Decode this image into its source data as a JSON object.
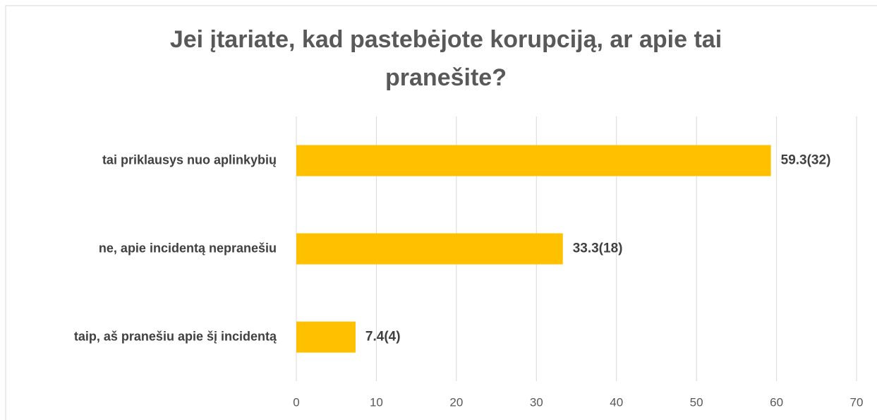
{
  "chart_data": {
    "type": "bar",
    "orientation": "horizontal",
    "title": [
      "Jei įtariate, kad pastebėjote korupciją, ar apie tai",
      "pranešite?"
    ],
    "categories": [
      "tai priklausys nuo aplinkybių ",
      "ne, apie incidentą nepranešiu",
      "taip, aš pranešiu apie šį incidentą"
    ],
    "values": [
      59.3,
      33.3,
      7.4
    ],
    "value_labels": [
      "59.3(32)",
      "33.3(18)",
      "7.4(4)"
    ],
    "color": "#FFC000",
    "xlim": [
      0,
      70
    ],
    "xticks": [
      0,
      10,
      20,
      30,
      40,
      50,
      60,
      70
    ],
    "grid": true
  }
}
